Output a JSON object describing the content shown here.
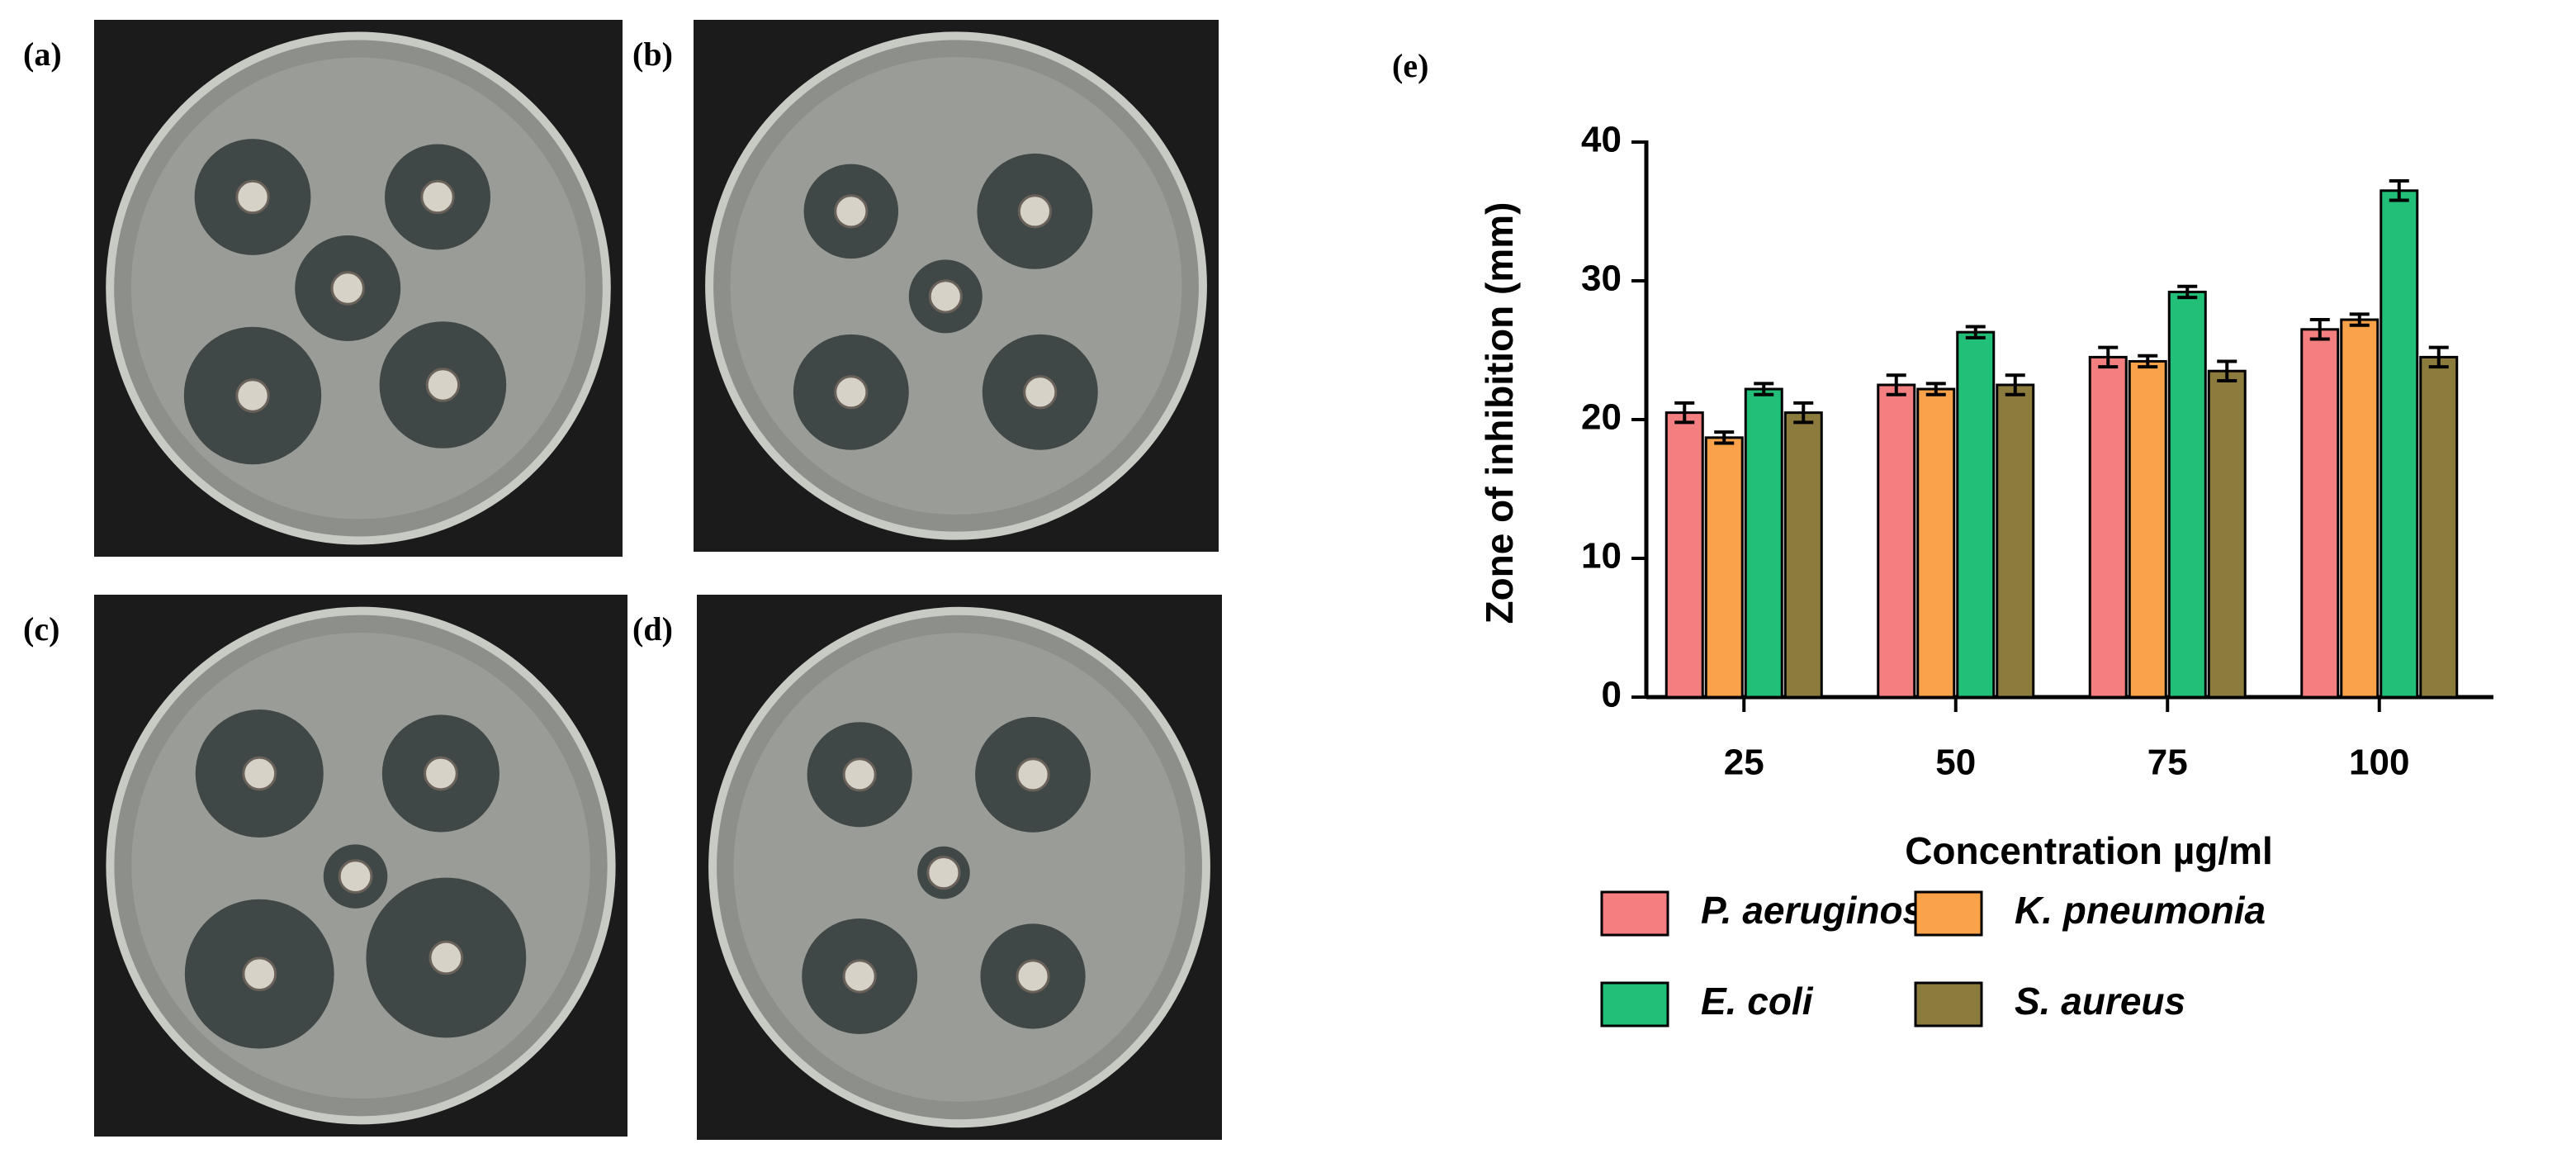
{
  "panels": [
    {
      "label": "(a)"
    },
    {
      "label": "(b)"
    },
    {
      "label": "(c)"
    },
    {
      "label": "(d)"
    }
  ],
  "chart_data": {
    "type": "bar",
    "panel_label": "(e)",
    "x_label": "Concentration µg/ml",
    "y_label": "Zone of inhibition (mm)",
    "categories": [
      "25",
      "50",
      "75",
      "100"
    ],
    "series": [
      {
        "name": "P. aeruginosa",
        "color": "#f47f80",
        "values": [
          20.5,
          22.5,
          24.5,
          26.5
        ],
        "errors": [
          0.7,
          0.7,
          0.7,
          0.7
        ]
      },
      {
        "name": "K. pneumonia",
        "color": "#f9a24a",
        "values": [
          18.7,
          22.2,
          24.2,
          27.2
        ],
        "errors": [
          0.4,
          0.4,
          0.4,
          0.4
        ]
      },
      {
        "name": "E. coli",
        "color": "#22bf78",
        "values": [
          22.2,
          26.3,
          29.2,
          36.5
        ],
        "errors": [
          0.4,
          0.4,
          0.4,
          0.7
        ]
      },
      {
        "name": "S. aureus",
        "color": "#8b7b3c",
        "values": [
          20.5,
          22.5,
          23.5,
          24.5
        ],
        "errors": [
          0.7,
          0.7,
          0.7,
          0.7
        ]
      }
    ],
    "ylim": [
      0,
      40
    ],
    "yticks": [
      0,
      10,
      20,
      30,
      40
    ]
  }
}
